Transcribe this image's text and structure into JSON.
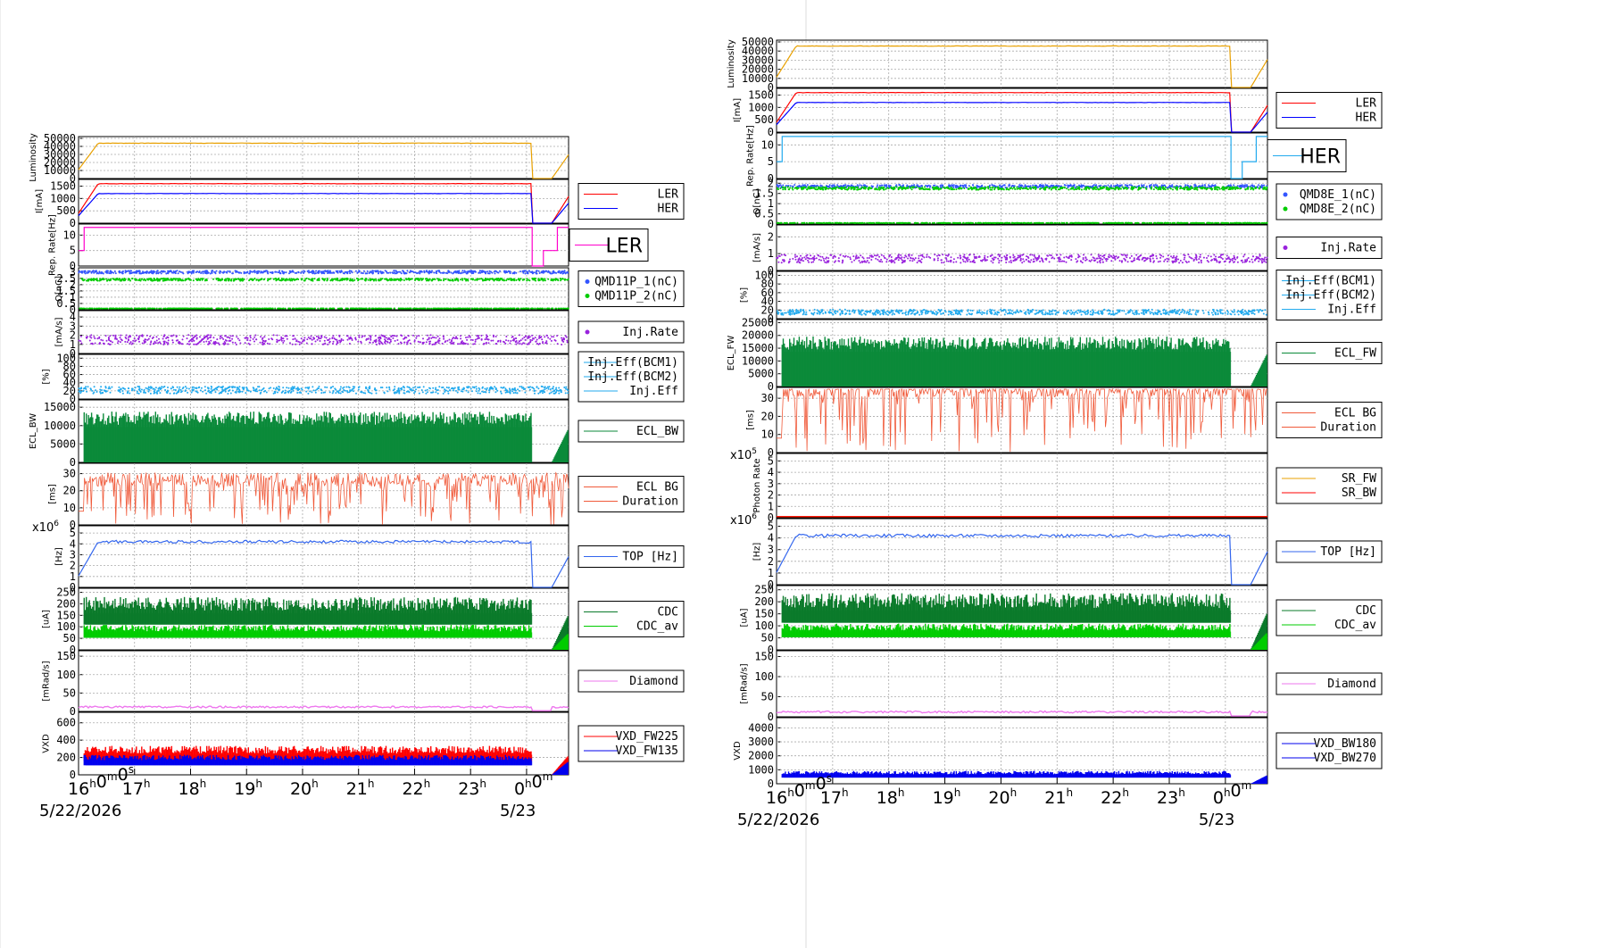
{
  "chart_data": [
    {
      "type": "line",
      "side": "LER",
      "title_box": "LER",
      "time_axis": {
        "ticks": [
          "16h0m0s",
          "17h",
          "18h",
          "19h",
          "20h",
          "21h",
          "22h",
          "23h",
          "0h0m"
        ],
        "tick_display": [
          {
            "base": "16",
            "sup": "h"
          },
          {
            "base": "0",
            "sup": "m"
          },
          {
            "base": "0",
            "sup": "s"
          }
        ],
        "hour_ticks": [
          "17",
          "18",
          "19",
          "20",
          "21",
          "22",
          "23"
        ],
        "end_tick": {
          "base": "0",
          "sup": "h",
          "base2": "0",
          "sup2": "m"
        },
        "start_date": "5/22/2026",
        "end_date": "5/23"
      },
      "panels": [
        {
          "id": "luminosity",
          "ylabel": "Luminosity",
          "yticks": [
            "0",
            "10000",
            "20000",
            "30000",
            "40000",
            "50000"
          ],
          "ymax": 50000,
          "series": [
            {
              "color": "#e8a000",
              "kind": "ramp-flat",
              "level": 44000,
              "drop": true
            }
          ],
          "legend": []
        },
        {
          "id": "current",
          "ylabel": "I[mA]",
          "yticks": [
            "0",
            "500",
            "1000",
            "1500"
          ],
          "ymax": 1700,
          "series": [
            {
              "name": "LER",
              "color": "#ff0000",
              "kind": "ramp-flat",
              "level": 1600,
              "drop": true
            },
            {
              "name": "HER",
              "color": "#0000ff",
              "kind": "ramp-flat",
              "level": 1200,
              "drop": true
            }
          ],
          "legend": [
            "LER",
            "HER"
          ]
        },
        {
          "id": "reprate",
          "ylabel": "Rep. Rate[Hz]",
          "yticks": [
            "0",
            "5",
            "10"
          ],
          "ymax": 13,
          "series": [
            {
              "color": "#ff00cc",
              "kind": "step",
              "level": 12.5,
              "drop": true
            }
          ],
          "legend": [],
          "big_legend": "LER",
          "big_legend_color": "#ff00cc"
        },
        {
          "id": "charge",
          "ylabel": "Q[nC]",
          "yticks": [
            "0",
            "0.5",
            "1",
            "1.5",
            "2",
            "2.5",
            "3"
          ],
          "ymax": 3.2,
          "series": [
            {
              "name": "QMD11P_1(nC)",
              "color": "#3355ff",
              "kind": "dots",
              "level": 3.0
            },
            {
              "name": "QMD11P_2(nC)",
              "color": "#00cc00",
              "kind": "dots",
              "level": 2.4
            },
            {
              "color": "#00cc00",
              "kind": "dots",
              "level": 0.1
            }
          ],
          "legend": [
            "QMD11P_1(nC)",
            "QMD11P_2(nC)"
          ],
          "legend_dots": true
        },
        {
          "id": "injrate",
          "ylabel": "[mA/s]",
          "yticks": [
            "0",
            "1",
            "2",
            "3",
            "4"
          ],
          "ymax": 4.5,
          "series": [
            {
              "name": "Inj.Rate",
              "color": "#9922dd",
              "kind": "noise",
              "level": 1.5
            }
          ],
          "legend": [
            "Inj.Rate"
          ],
          "legend_dots": true
        },
        {
          "id": "injeff",
          "ylabel": "[%]",
          "yticks": [
            "0",
            "20",
            "40",
            "60",
            "80",
            "100"
          ],
          "ymax": 105,
          "series": [
            {
              "color": "#22aaee",
              "kind": "dots",
              "level": 22
            }
          ],
          "legend": [
            "Inj.Eff(BCM1)",
            "Inj.Eff(BCM2)",
            "Inj.Eff"
          ]
        },
        {
          "id": "eclbw",
          "ylabel": "ECL_BW",
          "yticks": [
            "0",
            "5000",
            "10000",
            "15000"
          ],
          "ymax": 16500,
          "series": [
            {
              "name": "ECL_BW",
              "color": "#0b8a3a",
              "kind": "fill",
              "level": 12000
            }
          ],
          "legend": [
            "ECL_BW"
          ]
        },
        {
          "id": "eclbg",
          "ylabel": "[ms]",
          "yticks": [
            "0",
            "10",
            "20",
            "30"
          ],
          "ymax": 35,
          "series": [
            {
              "color": "#f05a3a",
              "kind": "spiky",
              "level": 25
            }
          ],
          "legend": [
            "ECL BG",
            "Duration"
          ]
        },
        {
          "id": "top",
          "ylabel": "[Hz]",
          "yticks": [
            "0",
            "1",
            "2",
            "3",
            "4",
            "5"
          ],
          "ymax": 5.5,
          "exp": "x10",
          "exp_sup": "6",
          "series": [
            {
              "color": "#3366ee",
              "kind": "ramp-noise",
              "level": 4.2,
              "drop": true
            }
          ],
          "legend": [
            "TOP [Hz]"
          ]
        },
        {
          "id": "cdc",
          "ylabel": "[uA]",
          "yticks": [
            "0",
            "50",
            "100",
            "150",
            "200",
            "250"
          ],
          "ymax": 260,
          "series": [
            {
              "color": "#0a7a2a",
              "kind": "band",
              "level": 200
            },
            {
              "color": "#00cc00",
              "kind": "band",
              "level": 95
            }
          ],
          "legend": [
            "CDC",
            "CDC_av"
          ]
        },
        {
          "id": "diamond",
          "ylabel": "[mRad/s]",
          "yticks": [
            "0",
            "50",
            "100",
            "150"
          ],
          "ymax": 160,
          "series": [
            {
              "color": "#ee77ee",
              "kind": "low",
              "level": 12
            }
          ],
          "legend": [
            "Diamond"
          ]
        },
        {
          "id": "vxd",
          "ylabel": "VXD",
          "yticks": [
            "0",
            "200",
            "400",
            "600"
          ],
          "ymax": 700,
          "series": [
            {
              "color": "#ff0000",
              "kind": "band",
              "level": 290
            },
            {
              "color": "#0000ee",
              "kind": "band",
              "level": 200
            }
          ],
          "legend": [
            "VXD_FW225",
            "VXD_FW135"
          ]
        }
      ]
    },
    {
      "type": "line",
      "side": "HER",
      "title_box": "HER",
      "time_axis": {
        "ticks": [
          "16h0m0s",
          "17h",
          "18h",
          "19h",
          "20h",
          "21h",
          "22h",
          "23h",
          "0h0m"
        ],
        "start_date": "5/22/2026",
        "end_date": "5/23"
      },
      "panels": [
        {
          "id": "luminosity",
          "ylabel": "Luminosity",
          "yticks": [
            "0",
            "10000",
            "20000",
            "30000",
            "40000",
            "50000"
          ],
          "ymax": 50000,
          "series": [
            {
              "color": "#e8a000",
              "kind": "ramp-flat",
              "level": 45500,
              "drop": true
            }
          ],
          "legend": []
        },
        {
          "id": "current",
          "ylabel": "I[mA]",
          "yticks": [
            "0",
            "500",
            "1000",
            "1500"
          ],
          "ymax": 1700,
          "series": [
            {
              "color": "#ff0000",
              "kind": "ramp-flat",
              "level": 1600,
              "drop": true
            },
            {
              "color": "#0000ff",
              "kind": "ramp-flat",
              "level": 1200,
              "drop": true
            }
          ],
          "legend": [
            "LER",
            "HER"
          ]
        },
        {
          "id": "reprate",
          "ylabel": "Rep. Rate[Hz]",
          "yticks": [
            "0",
            "5",
            "10"
          ],
          "ymax": 13,
          "series": [
            {
              "color": "#22aaee",
              "kind": "step",
              "level": 12.5,
              "drop": true
            }
          ],
          "legend": [],
          "big_legend": "HER",
          "big_legend_color": "#22aaee"
        },
        {
          "id": "charge",
          "ylabel": "Q[nC]",
          "yticks": [
            "0",
            "0.5",
            "1",
            "1.5",
            "2"
          ],
          "ymax": 2.1,
          "series": [
            {
              "color": "#3355ff",
              "kind": "dots",
              "level": 1.85
            },
            {
              "color": "#00cc00",
              "kind": "dots",
              "level": 1.75
            },
            {
              "color": "#00cc00",
              "kind": "dots",
              "level": 0.05
            }
          ],
          "legend": [
            "QMD8E_1(nC)",
            "QMD8E_2(nC)"
          ],
          "legend_dots": true
        },
        {
          "id": "injrate",
          "ylabel": "[mA/s]",
          "yticks": [
            "0",
            "1",
            "2"
          ],
          "ymax": 2.6,
          "series": [
            {
              "color": "#9922dd",
              "kind": "noise",
              "level": 0.7
            }
          ],
          "legend": [
            "Inj.Rate"
          ],
          "legend_dots": true
        },
        {
          "id": "injeff",
          "ylabel": "[%]",
          "yticks": [
            "0",
            "20",
            "40",
            "60",
            "80",
            "100"
          ],
          "ymax": 105,
          "series": [
            {
              "color": "#22aaee",
              "kind": "dots",
              "level": 15
            }
          ],
          "legend": [
            "Inj.Eff(BCM1)",
            "Inj.Eff(BCM2)",
            "Inj.Eff"
          ]
        },
        {
          "id": "eclfw",
          "ylabel": "ECL_FW",
          "yticks": [
            "0",
            "5000",
            "10000",
            "15000",
            "20000",
            "25000"
          ],
          "ymax": 25500,
          "series": [
            {
              "color": "#0b8a3a",
              "kind": "fill",
              "level": 17000
            }
          ],
          "legend": [
            "ECL_FW"
          ]
        },
        {
          "id": "eclbg",
          "ylabel": "[ms]",
          "yticks": [
            "0",
            "10",
            "20",
            "30"
          ],
          "ymax": 35,
          "series": [
            {
              "color": "#f05a3a",
              "kind": "spiky",
              "level": 33
            }
          ],
          "legend": [
            "ECL BG",
            "Duration"
          ]
        },
        {
          "id": "photon",
          "ylabel": "Photon Rate",
          "yticks": [
            "0",
            "1",
            "2",
            "3",
            "4",
            "5"
          ],
          "ymax": 5.5,
          "exp": "x10",
          "exp_sup": "5",
          "series": [
            {
              "color": "#e8a000",
              "kind": "flat0",
              "level": 0
            },
            {
              "color": "#ff0000",
              "kind": "flat0",
              "level": 0
            }
          ],
          "legend": [
            "SR_FW",
            "SR_BW"
          ]
        },
        {
          "id": "top",
          "ylabel": "[Hz]",
          "yticks": [
            "0",
            "1",
            "2",
            "3",
            "4",
            "5"
          ],
          "ymax": 5.5,
          "exp": "x10",
          "exp_sup": "6",
          "series": [
            {
              "color": "#3366ee",
              "kind": "ramp-noise",
              "level": 4.2,
              "drop": true
            }
          ],
          "legend": [
            "TOP [Hz]"
          ]
        },
        {
          "id": "cdc",
          "ylabel": "[uA]",
          "yticks": [
            "0",
            "50",
            "100",
            "150",
            "200",
            "250"
          ],
          "ymax": 260,
          "series": [
            {
              "color": "#0a7a2a",
              "kind": "band",
              "level": 205
            },
            {
              "color": "#00cc00",
              "kind": "band",
              "level": 95
            }
          ],
          "legend": [
            "CDC",
            "CDC_av"
          ]
        },
        {
          "id": "diamond",
          "ylabel": "[mRad/s]",
          "yticks": [
            "0",
            "50",
            "100",
            "150"
          ],
          "ymax": 160,
          "series": [
            {
              "color": "#ee77ee",
              "kind": "low",
              "level": 12
            }
          ],
          "legend": [
            "Diamond"
          ]
        },
        {
          "id": "vxd",
          "ylabel": "VXD",
          "yticks": [
            "0",
            "1000",
            "2000",
            "3000",
            "4000"
          ],
          "ymax": 4600,
          "series": [
            {
              "color": "#0000ee",
              "kind": "band",
              "level": 800
            }
          ],
          "legend": [
            "VXD_BW180",
            "VXD_BW270"
          ]
        }
      ]
    }
  ]
}
